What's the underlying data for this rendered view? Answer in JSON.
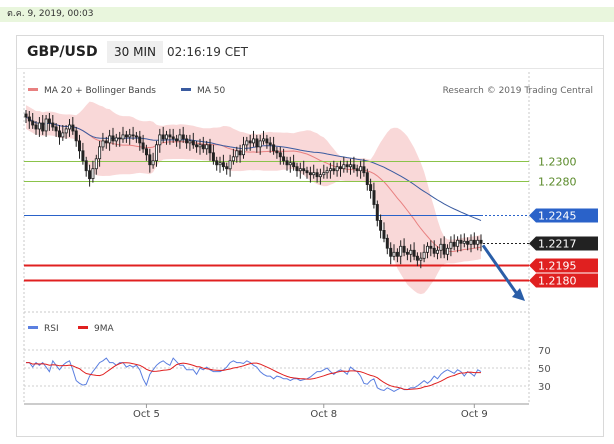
{
  "top_date": "ต.ค. 9, 2019, 00:03",
  "header": {
    "symbol": "GBP/USD",
    "interval": "30 MIN",
    "time": "02:16:19 CET"
  },
  "legend": {
    "bb_label": "MA 20 + Bollinger Bands",
    "ma50_label": "MA 50",
    "credit": "Research © 2019 Trading Central"
  },
  "rsi_legend": {
    "rsi_label": "RSI",
    "ma_label": "9MA"
  },
  "colors": {
    "bollinger": "#f4b8b8",
    "ma20": "#e88080",
    "ma50": "#3a5ba0",
    "bull": "#ffffff",
    "bear": "#222222",
    "green_level": "#8bc34a",
    "red_level": "#e02020",
    "blue_level": "#2a62c9",
    "arrow": "#2a5ea8",
    "rsi": "#5b7fe0",
    "rsi_ma": "#e02020"
  },
  "icons": {
    "arrow": "down-right-arrow"
  },
  "chart_data": [
    {
      "type": "candlestick",
      "title": "",
      "ylim": [
        0.2165,
        1.233
      ],
      "x_ticks": [
        "Oct 5",
        "Oct 8",
        "Oct 9"
      ],
      "price_levels": [
        {
          "label": "1.2300",
          "value": 1.23,
          "kind": "resistance",
          "color": "#8bc34a"
        },
        {
          "label": "1.2280",
          "value": 1.228,
          "kind": "resistance",
          "color": "#8bc34a"
        },
        {
          "label": "1.2245",
          "value": 1.2245,
          "kind": "ma50",
          "color": "#2a62c9"
        },
        {
          "label": "1.2217",
          "value": 1.2217,
          "kind": "last_price",
          "color": "#222222"
        },
        {
          "label": "1.2195",
          "value": 1.2195,
          "kind": "support",
          "color": "#e02020"
        },
        {
          "label": "1.2180",
          "value": 1.218,
          "kind": "support",
          "color": "#e02020"
        }
      ],
      "close": [
        1.2344,
        1.234,
        1.2336,
        1.2332,
        1.2338,
        1.233,
        1.2342,
        1.2338,
        1.2334,
        1.233,
        1.2324,
        1.2328,
        1.2332,
        1.2336,
        1.233,
        1.232,
        1.231,
        1.23,
        1.229,
        1.2282,
        1.2292,
        1.2302,
        1.2314,
        1.232,
        1.2318,
        1.2325,
        1.232,
        1.2323,
        1.2322,
        1.2326,
        1.2324,
        1.2326,
        1.2325,
        1.2324,
        1.2318,
        1.2312,
        1.2306,
        1.2296,
        1.23,
        1.2316,
        1.2326,
        1.2322,
        1.2326,
        1.2324,
        1.2322,
        1.232,
        1.2326,
        1.2322,
        1.2318,
        1.232,
        1.2316,
        1.2314,
        1.2316,
        1.2312,
        1.2316,
        1.2308,
        1.23,
        1.2296,
        1.2298,
        1.2294,
        1.2292,
        1.23,
        1.2304,
        1.231,
        1.2306,
        1.2316,
        1.232,
        1.2318,
        1.2322,
        1.2314,
        1.232,
        1.2322,
        1.2318,
        1.2316,
        1.231,
        1.2308,
        1.2304,
        1.23,
        1.2296,
        1.2298,
        1.2294,
        1.229,
        1.2292,
        1.229,
        1.2288,
        1.2286,
        1.2288,
        1.2284,
        1.2286,
        1.2288,
        1.229,
        1.2292,
        1.229,
        1.2294,
        1.2292,
        1.2296,
        1.2294,
        1.2296,
        1.2292,
        1.229,
        1.2294,
        1.2288,
        1.2276,
        1.227,
        1.2256,
        1.224,
        1.223,
        1.2222,
        1.2212,
        1.2204,
        1.2208,
        1.2204,
        1.2214,
        1.2208,
        1.2206,
        1.221,
        1.2204,
        1.22,
        1.2202,
        1.2208,
        1.2214,
        1.2212,
        1.2207,
        1.221,
        1.2216,
        1.2206,
        1.2212,
        1.2218,
        1.2214,
        1.222,
        1.2217,
        1.2219,
        1.2216,
        1.222,
        1.2216,
        1.222,
        1.2217
      ],
      "rsi": {
        "yticks": [
          70,
          50,
          30
        ],
        "values": [
          56,
          56,
          51,
          56,
          53,
          56,
          51,
          46,
          58,
          53,
          48,
          53,
          56,
          58,
          48,
          36,
          33,
          31,
          32,
          41,
          46,
          51,
          56,
          58,
          61,
          56,
          56,
          53,
          56,
          56,
          51,
          53,
          51,
          53,
          48,
          38,
          31,
          43,
          48,
          53,
          56,
          58,
          55,
          53,
          61,
          57,
          53,
          53,
          48,
          48,
          48,
          43,
          50,
          48,
          51,
          48,
          46,
          46,
          46,
          48,
          51,
          56,
          58,
          56,
          56,
          55,
          58,
          56,
          53,
          51,
          46,
          43,
          41,
          41,
          38,
          41,
          40,
          38,
          38,
          36,
          38,
          38,
          36,
          37,
          38,
          40,
          43,
          46,
          46,
          48,
          50,
          46,
          43,
          46,
          48,
          46,
          43,
          51,
          48,
          46,
          41,
          33,
          32,
          36,
          38,
          28,
          26,
          25,
          28,
          26,
          24,
          26,
          28,
          26,
          26,
          28,
          28,
          30,
          33,
          36,
          33,
          36,
          41,
          38,
          43,
          46,
          48,
          46,
          44,
          48,
          46,
          41,
          46,
          44,
          41,
          48,
          46
        ]
      }
    }
  ]
}
